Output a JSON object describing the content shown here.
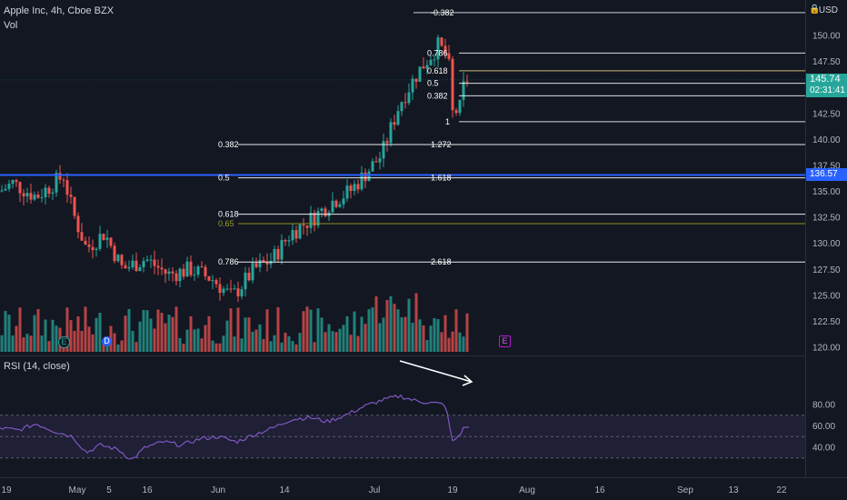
{
  "header": {
    "title": "Apple Inc, 4h, Cboe BZX",
    "volume_label": "Vol",
    "rsi_label": "RSI (14, close)",
    "currency": "USD"
  },
  "price_axis": {
    "ticks": [
      "150.00",
      "147.50",
      "145.00",
      "142.50",
      "140.00",
      "137.50",
      "135.00",
      "132.50",
      "130.00",
      "127.50",
      "125.00",
      "122.50",
      "120.00"
    ],
    "last_price": "145.74",
    "countdown": "02:31:41",
    "level_price": "136.57"
  },
  "rsi_axis": {
    "ticks": [
      "80.00",
      "60.00",
      "40.00"
    ]
  },
  "time_axis": {
    "labels": [
      "19",
      "May",
      "5",
      "16",
      "Jun",
      "14",
      "Jul",
      "19",
      "Aug",
      "16",
      "Sep",
      "13",
      "22"
    ]
  },
  "fib_left": {
    "levels": [
      "0.382",
      "0.5",
      "0.618",
      "0.65",
      "0.786"
    ]
  },
  "fib_ext": {
    "levels": [
      "-0.382",
      "1.272",
      "1.618",
      "2.618"
    ]
  },
  "fib_right": {
    "levels": [
      "0.786",
      "0.618",
      "0.5",
      "0.382",
      "1"
    ]
  },
  "earnings_markers": {
    "e1": "E",
    "d": "D",
    "e2": "E"
  },
  "colors": {
    "background": "#131722",
    "up": "#26a69a",
    "down": "#ef5350",
    "level_line": "#2962ff",
    "rsi_line": "#7e57c2",
    "rsi_band": "#7e57c2",
    "fib_gold": "#9c9c1e"
  },
  "chart_data": {
    "type": "candlestick",
    "title": "Apple Inc, 4h, Cboe BZX",
    "y_range": [
      120,
      152
    ],
    "rsi_range": [
      20,
      95
    ],
    "rsi_bands": [
      70,
      50,
      30
    ],
    "fib_retracement_left": [
      {
        "level": "0.382",
        "price": 139.5
      },
      {
        "level": "0.5",
        "price": 136.3
      },
      {
        "level": "0.618",
        "price": 132.8
      },
      {
        "level": "0.65",
        "price": 131.9
      },
      {
        "level": "0.786",
        "price": 128.2
      }
    ],
    "fib_extension": [
      {
        "level": "-0.382",
        "price": 152.2
      },
      {
        "level": "1.272",
        "price": 139.5
      },
      {
        "level": "1.618",
        "price": 136.3
      },
      {
        "level": "2.618",
        "price": 128.2
      }
    ],
    "fib_retracement_right": [
      {
        "level": "0.786",
        "price": 148.3
      },
      {
        "level": "0.618",
        "price": 146.6
      },
      {
        "level": "0.5",
        "price": 145.4
      },
      {
        "level": "0.382",
        "price": 144.2
      },
      {
        "level": "1",
        "price": 141.7
      }
    ],
    "horizontal_level": 136.57,
    "last_price": 145.74,
    "rsi_note": "bearish divergence arrow drawn from ~88 to ~82"
  }
}
